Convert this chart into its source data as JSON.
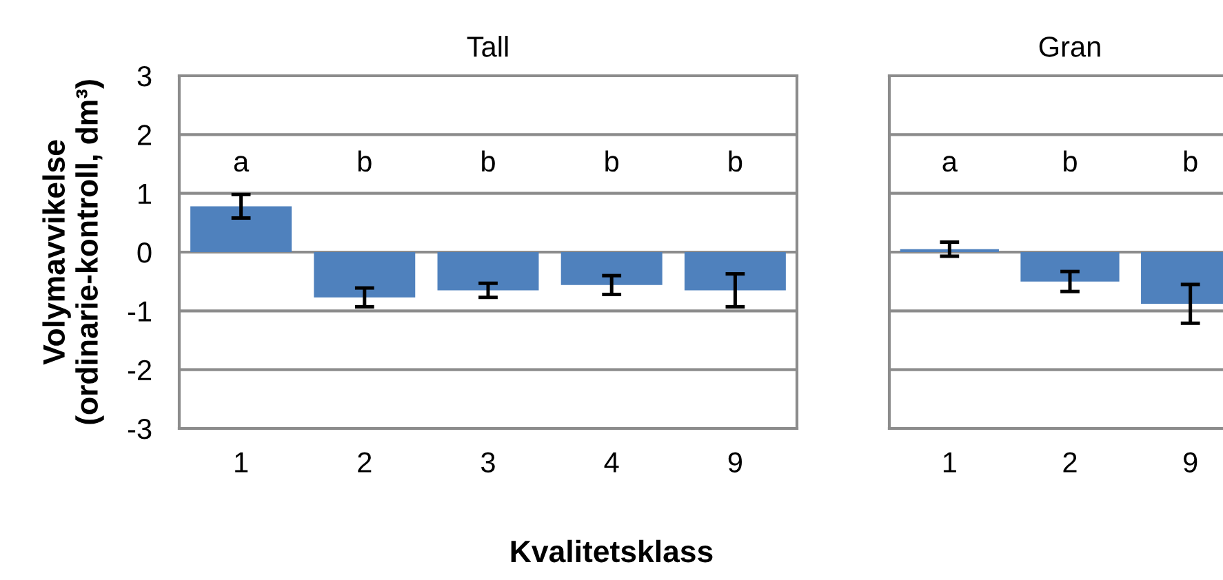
{
  "chart_data": [
    {
      "type": "bar",
      "title": "Tall",
      "xlabel": "Kvalitetsklass",
      "ylabel": "Volymavvikelse\n(ordinarie-kontroll, dm³)",
      "categories": [
        "1",
        "2",
        "3",
        "4",
        "9"
      ],
      "values": [
        0.78,
        -0.77,
        -0.65,
        -0.56,
        -0.65
      ],
      "errors": [
        0.2,
        0.16,
        0.12,
        0.16,
        0.28
      ],
      "color": "#4f81bd",
      "ylim": [
        -3,
        3
      ],
      "yticks": [
        -3,
        -2,
        -1,
        0,
        1,
        2,
        3
      ],
      "grid": "y",
      "annotations": [
        "a",
        "b",
        "b",
        "b",
        "b"
      ]
    },
    {
      "type": "bar",
      "title": "Gran",
      "categories": [
        "1",
        "2",
        "9"
      ],
      "values": [
        0.05,
        -0.5,
        -0.88
      ],
      "errors": [
        0.12,
        0.17,
        0.33
      ],
      "color": "#4f81bd",
      "ylim": [
        -3,
        3
      ],
      "yticks": [
        -3,
        -2,
        -1,
        0,
        1,
        2,
        3
      ],
      "grid": "y",
      "tick_labels": "x",
      "annotations": [
        "a",
        "b",
        "b"
      ]
    }
  ]
}
